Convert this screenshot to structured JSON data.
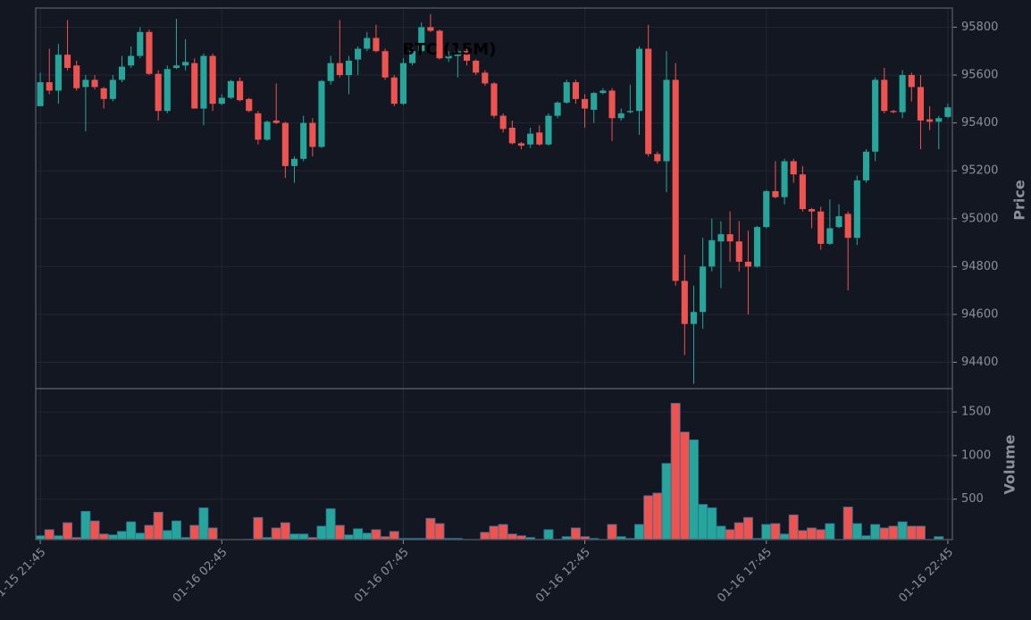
{
  "chart_data": {
    "type": "candlestick",
    "title": "BTC (15M)",
    "ylabel": "Price",
    "volume_label": "Volume",
    "up_color": "#26a69a",
    "down_color": "#ef5350",
    "grid": true,
    "categories": [
      "01-15 21:45",
      null,
      null,
      null,
      null,
      null,
      null,
      null,
      null,
      null,
      null,
      null,
      null,
      null,
      null,
      null,
      null,
      null,
      null,
      null,
      "01-16 02:45",
      null,
      null,
      null,
      null,
      null,
      null,
      null,
      null,
      null,
      null,
      null,
      null,
      null,
      null,
      null,
      null,
      null,
      null,
      null,
      "01-16 07:45",
      null,
      null,
      null,
      null,
      null,
      null,
      null,
      null,
      null,
      null,
      null,
      null,
      null,
      null,
      null,
      null,
      null,
      null,
      null,
      "01-16 12:45",
      null,
      null,
      null,
      null,
      null,
      null,
      null,
      null,
      null,
      null,
      null,
      null,
      null,
      null,
      null,
      null,
      null,
      null,
      null,
      "01-16 17:45",
      null,
      null,
      null,
      null,
      null,
      null,
      null,
      null,
      null,
      null,
      null,
      null,
      null,
      null,
      null,
      null,
      null,
      null,
      null,
      "01-16 22:45"
    ],
    "open": [
      95470,
      95570,
      95535,
      95685,
      95640,
      95550,
      95580,
      95545,
      95500,
      95580,
      95640,
      95680,
      95780,
      95605,
      95450,
      95630,
      95640,
      95650,
      95460,
      95680,
      95480,
      95505,
      95575,
      95500,
      95440,
      95330,
      95410,
      95400,
      95220,
      95250,
      95400,
      95300,
      95575,
      95650,
      95600,
      95665,
      95710,
      95755,
      95700,
      95590,
      95480,
      95650,
      95700,
      95800,
      95785,
      95670,
      95680,
      95700,
      95660,
      95610,
      95565,
      95430,
      95380,
      95315,
      95310,
      95360,
      95310,
      95430,
      95485,
      95570,
      95500,
      95455,
      95525,
      95535,
      95420,
      95445,
      95450,
      95710,
      95270,
      95240,
      95580,
      94740,
      94560,
      94610,
      94800,
      94905,
      94935,
      94905,
      94820,
      94800,
      94965,
      95115,
      95090,
      95240,
      95185,
      95040,
      95030,
      94895,
      94965,
      95020,
      94920,
      95160,
      95280,
      95580,
      95450,
      95445,
      95600,
      95550,
      95415,
      95405,
      95425
    ],
    "high": [
      95610,
      95710,
      95730,
      95830,
      95660,
      95600,
      95600,
      95550,
      95600,
      95680,
      95720,
      95800,
      95790,
      95620,
      95640,
      95835,
      95750,
      95670,
      95690,
      95690,
      95520,
      95580,
      95590,
      95505,
      95450,
      95410,
      95565,
      95405,
      95260,
      95430,
      95420,
      95580,
      95680,
      95830,
      95680,
      95720,
      95780,
      95810,
      95710,
      95600,
      95670,
      95720,
      95820,
      95855,
      95790,
      95700,
      95710,
      95710,
      95665,
      95620,
      95570,
      95440,
      95410,
      95320,
      95380,
      95390,
      95440,
      95490,
      95580,
      95580,
      95520,
      95530,
      95545,
      95545,
      95460,
      95560,
      95720,
      95810,
      95280,
      95700,
      95650,
      94850,
      94720,
      94920,
      95000,
      94990,
      95030,
      94990,
      94950,
      94970,
      95120,
      95240,
      95250,
      95250,
      95220,
      95045,
      95050,
      95080,
      95060,
      95030,
      95180,
      95290,
      95590,
      95630,
      95455,
      95620,
      95610,
      95600,
      95470,
      95430,
      95480
    ],
    "low": [
      95470,
      95520,
      95480,
      95620,
      95535,
      95365,
      95540,
      95460,
      95490,
      95570,
      95630,
      95670,
      95600,
      95410,
      95440,
      95625,
      95620,
      95460,
      95390,
      95450,
      95475,
      95500,
      95490,
      95445,
      95310,
      95325,
      95395,
      95170,
      95150,
      95240,
      95260,
      95295,
      95560,
      95590,
      95520,
      95600,
      95700,
      95695,
      95580,
      95470,
      95475,
      95640,
      95690,
      95780,
      95665,
      95655,
      95590,
      95640,
      95600,
      95555,
      95420,
      95360,
      95310,
      95290,
      95295,
      95305,
      95305,
      95420,
      95480,
      95480,
      95380,
      95400,
      95520,
      95325,
      95410,
      95440,
      95350,
      95260,
      95230,
      95110,
      94720,
      94430,
      94310,
      94540,
      94780,
      94710,
      94820,
      94780,
      94600,
      94795,
      94960,
      95085,
      95060,
      95150,
      95030,
      94960,
      94870,
      94890,
      94960,
      94700,
      94890,
      95150,
      95240,
      95440,
      95440,
      95420,
      95490,
      95290,
      95370,
      95290,
      95420
    ],
    "close": [
      95570,
      95535,
      95685,
      95630,
      95545,
      95580,
      95550,
      95500,
      95580,
      95635,
      95680,
      95780,
      95605,
      95450,
      95625,
      95640,
      95655,
      95460,
      95680,
      95480,
      95505,
      95575,
      95495,
      95450,
      95330,
      95405,
      95400,
      95220,
      95250,
      95400,
      95300,
      95575,
      95650,
      95600,
      95660,
      95710,
      95755,
      95700,
      95590,
      95480,
      95650,
      95700,
      95800,
      95785,
      95670,
      95680,
      95700,
      95660,
      95610,
      95565,
      95430,
      95375,
      95315,
      95305,
      95355,
      95310,
      95430,
      95485,
      95570,
      95500,
      95460,
      95525,
      95535,
      95420,
      95440,
      95450,
      95710,
      95270,
      95240,
      95580,
      94740,
      94560,
      94610,
      94800,
      94910,
      94935,
      94905,
      94820,
      94800,
      94965,
      95115,
      95090,
      95240,
      95185,
      95040,
      95030,
      94895,
      94960,
      95010,
      94920,
      95160,
      95280,
      95580,
      95450,
      95445,
      95600,
      95550,
      95410,
      95405,
      95420,
      95465
    ],
    "volume": [
      80,
      150,
      80,
      230,
      60,
      360,
      250,
      100,
      90,
      130,
      240,
      110,
      200,
      350,
      140,
      250,
      60,
      200,
      400,
      170,
      10,
      10,
      10,
      40,
      290,
      60,
      170,
      230,
      100,
      100,
      60,
      190,
      390,
      200,
      90,
      160,
      110,
      150,
      70,
      130,
      50,
      50,
      50,
      280,
      220,
      50,
      50,
      10,
      30,
      120,
      190,
      210,
      100,
      80,
      60,
      20,
      150,
      40,
      70,
      170,
      70,
      50,
      10,
      210,
      70,
      50,
      210,
      540,
      570,
      910,
      1600,
      1270,
      1180,
      440,
      400,
      190,
      150,
      230,
      290,
      50,
      210,
      220,
      100,
      320,
      140,
      170,
      150,
      220,
      20,
      410,
      220,
      80,
      210,
      170,
      190,
      240,
      190,
      190,
      30,
      70,
      20
    ],
    "ylim": [
      94290,
      95880
    ],
    "yticks": [
      94400,
      94600,
      94800,
      95000,
      95200,
      95400,
      95600,
      95800
    ],
    "volume_ylim": [
      36,
      1768
    ],
    "volume_yticks": [
      500,
      1000,
      1500
    ]
  }
}
